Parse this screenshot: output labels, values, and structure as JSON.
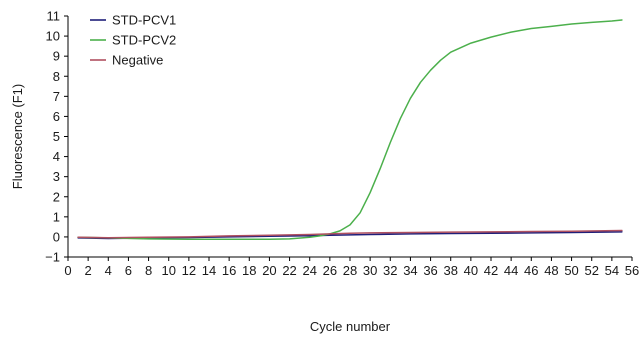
{
  "chart_data": {
    "type": "line",
    "title": "",
    "xlabel": "Cycle number",
    "ylabel": "Fluorescence (F1)",
    "xlim": [
      0,
      56
    ],
    "ylim": [
      -1,
      11
    ],
    "xticks": [
      0,
      2,
      4,
      6,
      8,
      10,
      12,
      14,
      16,
      18,
      20,
      22,
      24,
      26,
      28,
      30,
      32,
      34,
      36,
      38,
      40,
      42,
      44,
      46,
      48,
      50,
      52,
      54,
      56
    ],
    "yticks": [
      -1,
      0,
      1,
      2,
      3,
      4,
      5,
      6,
      7,
      8,
      9,
      10,
      11
    ],
    "grid": false,
    "legend_position": "top-left",
    "series": [
      {
        "name": "STD-PCV1",
        "color": "#1f1f7a",
        "x": [
          1,
          4,
          8,
          12,
          16,
          20,
          24,
          26,
          28,
          30,
          34,
          38,
          42,
          46,
          50,
          55
        ],
        "y": [
          -0.05,
          -0.08,
          -0.05,
          -0.03,
          0.0,
          0.03,
          0.06,
          0.08,
          0.1,
          0.12,
          0.15,
          0.17,
          0.18,
          0.2,
          0.22,
          0.25
        ]
      },
      {
        "name": "STD-PCV2",
        "color": "#4cb04c",
        "x": [
          1,
          4,
          8,
          12,
          16,
          20,
          22,
          24,
          25,
          26,
          27,
          28,
          29,
          30,
          31,
          32,
          33,
          34,
          35,
          36,
          37,
          38,
          40,
          42,
          44,
          46,
          48,
          50,
          52,
          54,
          55
        ],
        "y": [
          -0.02,
          -0.05,
          -0.1,
          -0.12,
          -0.12,
          -0.12,
          -0.1,
          -0.02,
          0.05,
          0.15,
          0.3,
          0.6,
          1.2,
          2.2,
          3.4,
          4.7,
          5.9,
          6.9,
          7.7,
          8.3,
          8.8,
          9.2,
          9.65,
          9.95,
          10.2,
          10.38,
          10.48,
          10.6,
          10.68,
          10.75,
          10.8
        ]
      },
      {
        "name": "Negative",
        "color": "#b05060",
        "x": [
          1,
          4,
          8,
          12,
          16,
          20,
          24,
          26,
          28,
          30,
          34,
          38,
          42,
          46,
          50,
          55
        ],
        "y": [
          -0.02,
          -0.04,
          -0.02,
          0.0,
          0.05,
          0.08,
          0.12,
          0.15,
          0.18,
          0.2,
          0.22,
          0.24,
          0.25,
          0.27,
          0.28,
          0.32
        ]
      }
    ]
  }
}
